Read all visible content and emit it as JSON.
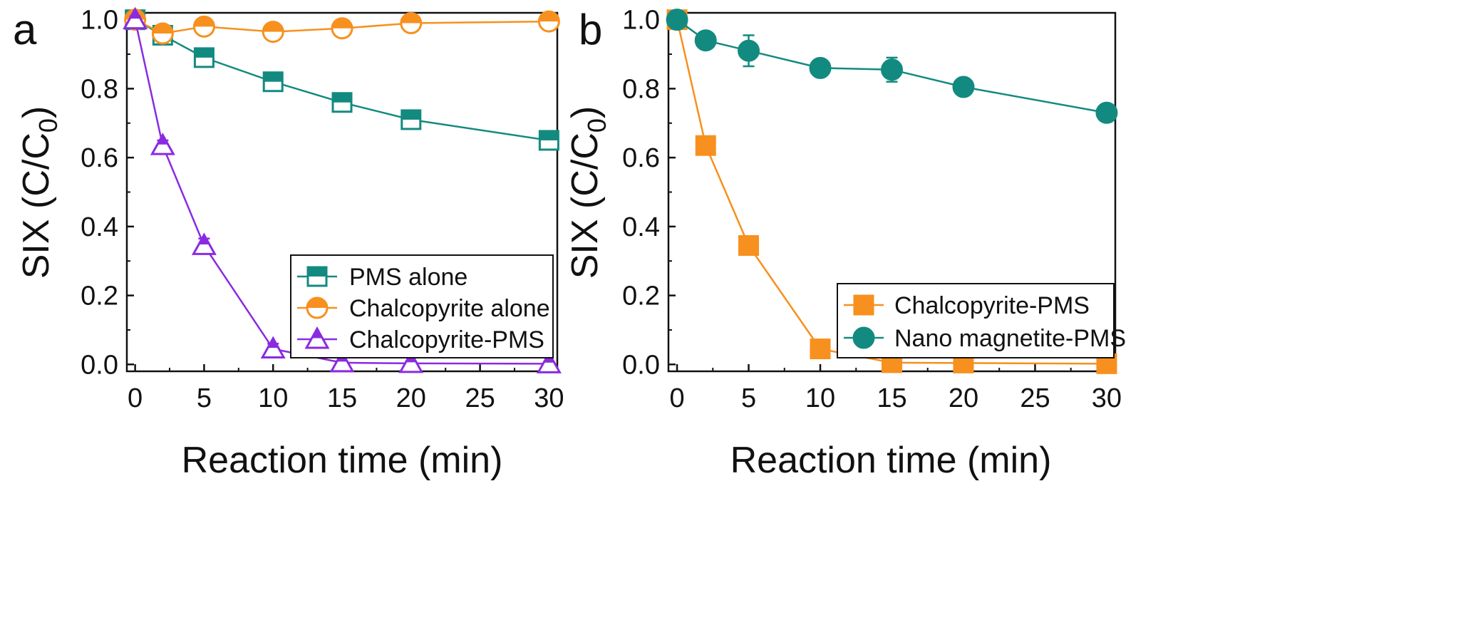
{
  "chart_data": [
    {
      "panel": "a",
      "type": "line",
      "xlabel": "Reaction time (min)",
      "ylabel": "SIX (C/C",
      "ylabel_subscript": "0",
      "ylabel_suffix": ")",
      "xlim": [
        -0.6,
        30.6
      ],
      "ylim": [
        -0.02,
        1.02
      ],
      "xticks": [
        0,
        5,
        10,
        15,
        20,
        25,
        30
      ],
      "yticks": [
        0.0,
        0.2,
        0.4,
        0.6,
        0.8,
        1.0
      ],
      "legend_position": "bottom-right",
      "series": [
        {
          "name": "PMS alone",
          "color": "#138a80",
          "marker": "square-half",
          "x": [
            0,
            2,
            5,
            10,
            15,
            20,
            30
          ],
          "y": [
            1.0,
            0.955,
            0.89,
            0.82,
            0.76,
            0.71,
            0.65
          ],
          "err": [
            0.01,
            0.025,
            0.015,
            0.015,
            0.015,
            0.015,
            0.015
          ]
        },
        {
          "name": "Chalcopyrite alone",
          "color": "#f7901e",
          "marker": "circle-half",
          "x": [
            0,
            2,
            5,
            10,
            15,
            20,
            30
          ],
          "y": [
            1.0,
            0.96,
            0.98,
            0.965,
            0.975,
            0.99,
            0.995
          ],
          "err": [
            0.01,
            0.02,
            0.01,
            0.01,
            0.01,
            0.01,
            0.01
          ]
        },
        {
          "name": "Chalcopyrite-PMS",
          "color": "#8a2be2",
          "marker": "triangle-half",
          "x": [
            0,
            2,
            5,
            10,
            15,
            20,
            30
          ],
          "y": [
            1.0,
            0.635,
            0.345,
            0.045,
            0.005,
            0.003,
            0.002
          ],
          "err": [
            0.01,
            0.015,
            0.02,
            0.015,
            0.005,
            0.003,
            0.002
          ]
        }
      ]
    },
    {
      "panel": "b",
      "type": "line",
      "xlabel": "Reaction time (min)",
      "ylabel": "SIX (C/C",
      "ylabel_subscript": "0",
      "ylabel_suffix": ")",
      "xlim": [
        -0.6,
        30.6
      ],
      "ylim": [
        -0.02,
        1.02
      ],
      "xticks": [
        0,
        5,
        10,
        15,
        20,
        25,
        30
      ],
      "yticks": [
        0.0,
        0.2,
        0.4,
        0.6,
        0.8,
        1.0
      ],
      "legend_position": "bottom-right",
      "series": [
        {
          "name": "Chalcopyrite-PMS",
          "color": "#f7901e",
          "marker": "square",
          "x": [
            0,
            2,
            5,
            10,
            15,
            20,
            30
          ],
          "y": [
            1.0,
            0.635,
            0.345,
            0.045,
            0.005,
            0.004,
            0.002
          ],
          "err": [
            0.01,
            0.015,
            0.02,
            0.015,
            0.005,
            0.003,
            0.002
          ]
        },
        {
          "name": "Nano magnetite-PMS",
          "color": "#138a80",
          "marker": "circle",
          "x": [
            0,
            2,
            5,
            10,
            15,
            20,
            30
          ],
          "y": [
            1.0,
            0.94,
            0.91,
            0.86,
            0.855,
            0.805,
            0.73
          ],
          "err": [
            0.01,
            0.02,
            0.045,
            0.025,
            0.035,
            0.015,
            0.01
          ]
        }
      ]
    }
  ]
}
